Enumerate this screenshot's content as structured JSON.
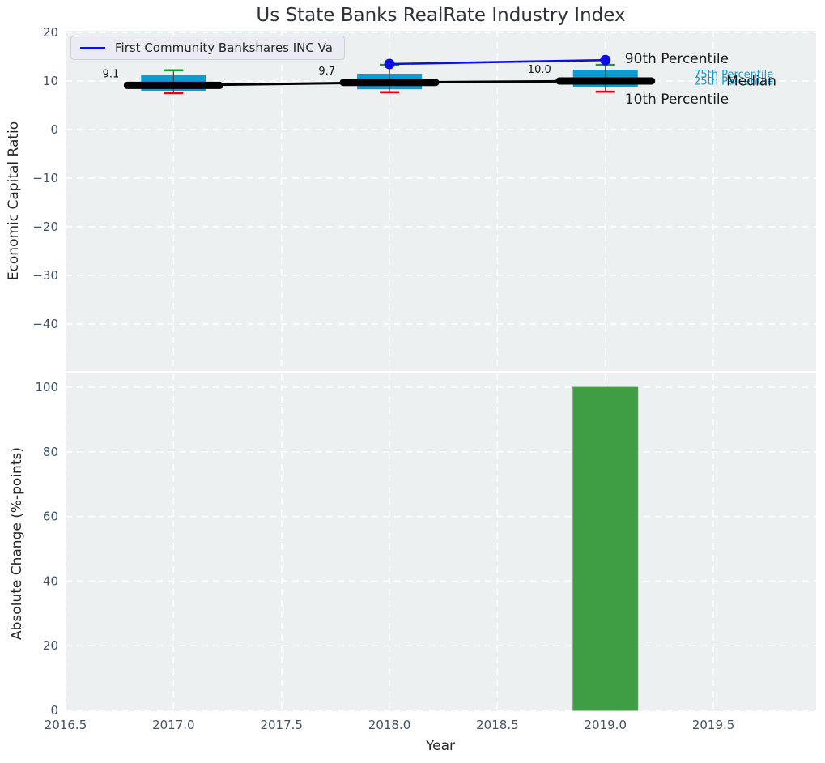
{
  "colors": {
    "axes_bg": "#ecf0f1",
    "grid": "#ffffff",
    "tick": "#3f5068",
    "text": "#262626",
    "box_fill": "#0d9bd3",
    "whisker": "#4d4d4d",
    "cap_top": "#0ba12b",
    "cap_bottom": "#e8000b",
    "median_line": "#000000",
    "company_line": "#0d0de8",
    "bar_fill": "#3f9e43",
    "bar_edge": "#53a852",
    "annotation_dark": "#1a1a1a",
    "annotation_cyan": "#0d9bd3"
  },
  "legend": {
    "label": "First Community Bankshares INC Va"
  },
  "chart_data": [
    {
      "type": "box",
      "title": "Us State Banks RealRate Industry Index",
      "xlabel": "",
      "ylabel": "Economic Capital Ratio",
      "xlim": [
        2016.5,
        2019.98
      ],
      "ylim": [
        -49.7,
        20.3
      ],
      "grid": "dashed-white",
      "legend_position": "upper-left",
      "ytick_values": [
        20,
        10,
        0,
        -10,
        -20,
        -30,
        -40
      ],
      "ytick_labels": [
        "20",
        "10",
        "0",
        "−10",
        "−20",
        "−30",
        "−40"
      ],
      "box_width_years": 0.3,
      "boxes": [
        {
          "year": 2017,
          "p10": 7.5,
          "p25": 8.0,
          "median": 9.1,
          "p75": 11.2,
          "p90": 12.2,
          "label": "9.1"
        },
        {
          "year": 2018,
          "p10": 7.7,
          "p25": 8.3,
          "median": 9.7,
          "p75": 11.5,
          "p90": 13.3,
          "label": "9.7"
        },
        {
          "year": 2019,
          "p10": 7.8,
          "p25": 8.7,
          "median": 10.0,
          "p75": 12.3,
          "p90": 13.3,
          "label": "10.0"
        }
      ],
      "median_series": {
        "x": [
          2017,
          2018,
          2019
        ],
        "y": [
          9.1,
          9.7,
          10.0
        ]
      },
      "company_line": {
        "name": "First Community Bankshares INC Va",
        "x": [
          2018,
          2019
        ],
        "y": [
          13.5,
          14.3
        ]
      },
      "annotations": [
        {
          "text": "90th Percentile",
          "x": 2019.09,
          "y": 14.7,
          "size": 17,
          "color": "#1a1a1a"
        },
        {
          "text": "75th Percentile",
          "x": 2019.41,
          "y": 11.4,
          "size": 13,
          "color": "#0d9bd3"
        },
        {
          "text": "25th Percentile",
          "x": 2019.41,
          "y": 10.0,
          "size": 13,
          "color": "#0d9bd3"
        },
        {
          "text": "Median",
          "x": 2019.56,
          "y": 10.05,
          "size": 17,
          "color": "#1a1a1a"
        },
        {
          "text": "10th Percentile",
          "x": 2019.09,
          "y": 6.3,
          "size": 17,
          "color": "#1a1a1a"
        }
      ]
    },
    {
      "type": "bar",
      "title": "",
      "xlabel": "Year",
      "ylabel": "Absolute Change (%-points)",
      "xlim": [
        2016.5,
        2019.98
      ],
      "ylim": [
        0,
        104
      ],
      "grid": "dashed-white",
      "categories": [
        2019
      ],
      "values": [
        100
      ],
      "bar_width_years": 0.3,
      "ytick_values": [
        0,
        20,
        40,
        60,
        80,
        100
      ],
      "ytick_labels": [
        "0",
        "20",
        "40",
        "60",
        "80",
        "100"
      ],
      "xtick_values": [
        2016.5,
        2017.0,
        2017.5,
        2018.0,
        2018.5,
        2019.0,
        2019.5
      ],
      "xtick_labels": [
        "2016.5",
        "2017.0",
        "2017.5",
        "2018.0",
        "2018.5",
        "2019.0",
        "2019.5"
      ]
    }
  ]
}
